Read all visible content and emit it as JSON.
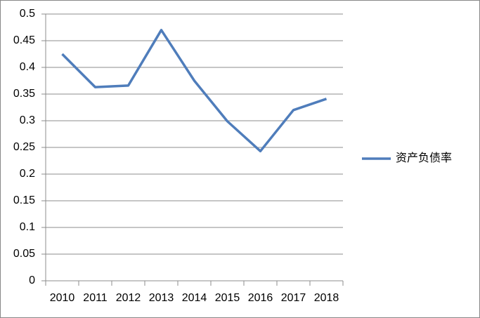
{
  "chart_data": {
    "type": "line",
    "categories": [
      "2010",
      "2011",
      "2012",
      "2013",
      "2014",
      "2015",
      "2016",
      "2017",
      "2018"
    ],
    "series": [
      {
        "name": "资产负债率",
        "color": "#4f7dbb",
        "values": [
          0.425,
          0.363,
          0.366,
          0.47,
          0.375,
          0.299,
          0.243,
          0.32,
          0.341
        ]
      }
    ],
    "ylim": [
      0,
      0.5
    ],
    "yticks": [
      0,
      0.05,
      0.1,
      0.15,
      0.2,
      0.25,
      0.3,
      0.35,
      0.4,
      0.45,
      0.5
    ],
    "grid": true,
    "legend": "right"
  }
}
